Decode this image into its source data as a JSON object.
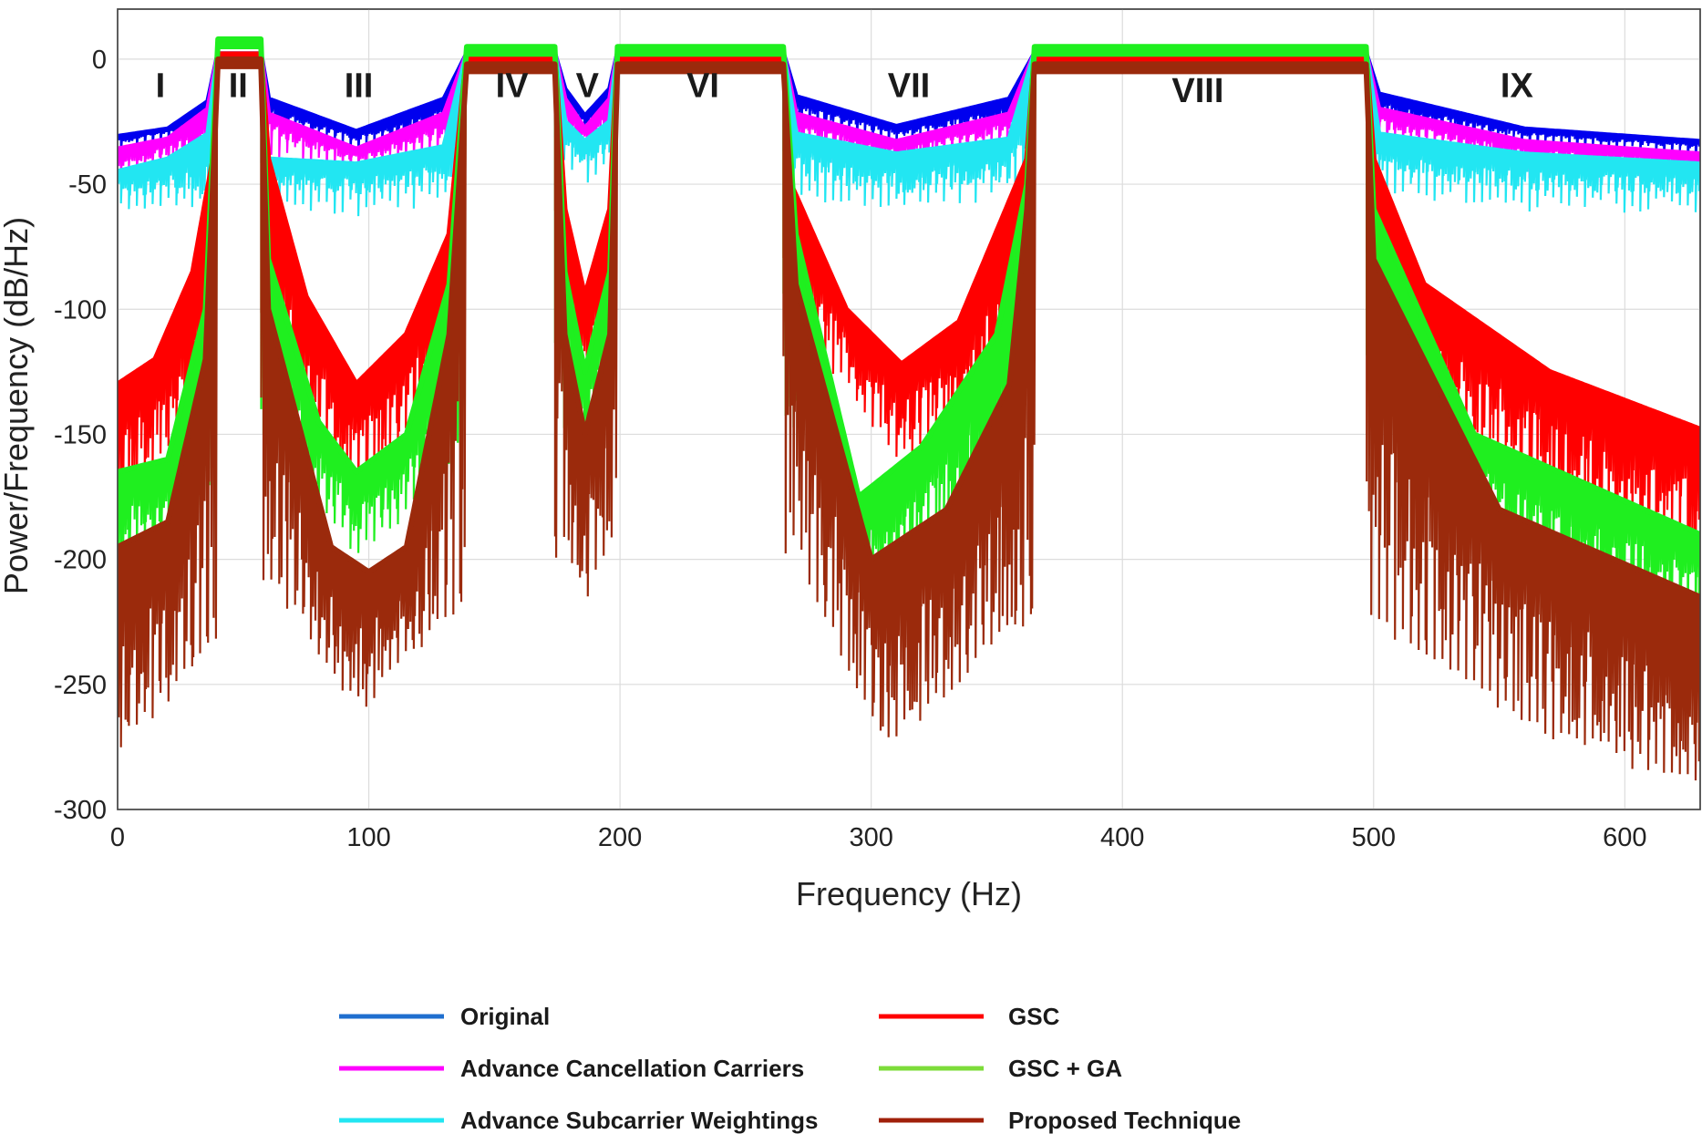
{
  "chart_data": {
    "type": "line",
    "xlabel": "Frequency (Hz)",
    "ylabel": "Power/Frequency (dB/Hz)",
    "xlim": [
      0,
      630
    ],
    "ylim": [
      -300,
      20
    ],
    "xticks": [
      0,
      100,
      200,
      300,
      400,
      500,
      600
    ],
    "yticks": [
      0,
      -50,
      -100,
      -150,
      -200,
      -250,
      -300
    ],
    "grid": true,
    "legend_position": "bottom",
    "region_labels": [
      {
        "text": "I",
        "x": 17,
        "y": -10
      },
      {
        "text": "II",
        "x": 48,
        "y": -10
      },
      {
        "text": "III",
        "x": 96,
        "y": -10
      },
      {
        "text": "IV",
        "x": 157,
        "y": -10
      },
      {
        "text": "V",
        "x": 187,
        "y": -10
      },
      {
        "text": "VI",
        "x": 233,
        "y": -10
      },
      {
        "text": "VII",
        "x": 315,
        "y": -10
      },
      {
        "text": "VIII",
        "x": 430,
        "y": -12
      },
      {
        "text": "IX",
        "x": 557,
        "y": -10
      }
    ],
    "passbands": [
      [
        40,
        57
      ],
      [
        139,
        174
      ],
      [
        199,
        265
      ],
      [
        365,
        497
      ]
    ],
    "series": [
      {
        "name": "Original",
        "color": "#0000ee",
        "envelope": [
          [
            0,
            -31
          ],
          [
            20,
            -28
          ],
          [
            36,
            -17
          ],
          [
            40,
            2
          ],
          [
            57,
            2
          ],
          [
            60,
            -16
          ],
          [
            95,
            -29
          ],
          [
            130,
            -16
          ],
          [
            139,
            2
          ],
          [
            174,
            2
          ],
          [
            178,
            -12
          ],
          [
            186,
            -23
          ],
          [
            196,
            -12
          ],
          [
            199,
            2
          ],
          [
            265,
            2
          ],
          [
            270,
            -15
          ],
          [
            310,
            -27
          ],
          [
            355,
            -16
          ],
          [
            365,
            2
          ],
          [
            497,
            2
          ],
          [
            502,
            -14
          ],
          [
            560,
            -28
          ],
          [
            630,
            -33
          ]
        ],
        "floor": [
          [
            0,
            -34
          ],
          [
            36,
            -26
          ],
          [
            60,
            -24
          ],
          [
            95,
            -33
          ],
          [
            130,
            -25
          ],
          [
            178,
            -20
          ],
          [
            186,
            -27
          ],
          [
            196,
            -20
          ],
          [
            270,
            -22
          ],
          [
            310,
            -31
          ],
          [
            355,
            -24
          ],
          [
            502,
            -22
          ],
          [
            560,
            -31
          ],
          [
            630,
            -36
          ]
        ]
      },
      {
        "name": "Advance Cancellation Carriers",
        "color": "#ff00ff",
        "envelope": [
          [
            0,
            -36
          ],
          [
            20,
            -32
          ],
          [
            36,
            -20
          ],
          [
            40,
            2
          ],
          [
            57,
            2
          ],
          [
            60,
            -22
          ],
          [
            95,
            -36
          ],
          [
            130,
            -22
          ],
          [
            139,
            2
          ],
          [
            174,
            2
          ],
          [
            178,
            -16
          ],
          [
            186,
            -28
          ],
          [
            196,
            -16
          ],
          [
            199,
            2
          ],
          [
            265,
            2
          ],
          [
            270,
            -22
          ],
          [
            310,
            -33
          ],
          [
            355,
            -22
          ],
          [
            365,
            2
          ],
          [
            497,
            2
          ],
          [
            502,
            -20
          ],
          [
            560,
            -33
          ],
          [
            630,
            -38
          ]
        ],
        "floor": [
          [
            0,
            -44
          ],
          [
            36,
            -34
          ],
          [
            60,
            -30
          ],
          [
            95,
            -42
          ],
          [
            130,
            -32
          ],
          [
            178,
            -28
          ],
          [
            186,
            -34
          ],
          [
            196,
            -28
          ],
          [
            270,
            -30
          ],
          [
            310,
            -40
          ],
          [
            355,
            -30
          ],
          [
            502,
            -28
          ],
          [
            560,
            -40
          ],
          [
            630,
            -44
          ]
        ]
      },
      {
        "name": "Advance Subcarrier Weightings",
        "color": "#22e6f2",
        "envelope": [
          [
            0,
            -45
          ],
          [
            20,
            -40
          ],
          [
            36,
            -30
          ],
          [
            40,
            2
          ],
          [
            57,
            2
          ],
          [
            60,
            -40
          ],
          [
            95,
            -42
          ],
          [
            130,
            -35
          ],
          [
            139,
            2
          ],
          [
            174,
            2
          ],
          [
            178,
            -25
          ],
          [
            186,
            -33
          ],
          [
            196,
            -25
          ],
          [
            199,
            2
          ],
          [
            265,
            2
          ],
          [
            270,
            -30
          ],
          [
            310,
            -38
          ],
          [
            355,
            -32
          ],
          [
            365,
            2
          ],
          [
            497,
            2
          ],
          [
            502,
            -30
          ],
          [
            560,
            -38
          ],
          [
            630,
            -42
          ]
        ],
        "floor": [
          [
            0,
            -55
          ],
          [
            36,
            -55
          ],
          [
            60,
            -52
          ],
          [
            95,
            -55
          ],
          [
            130,
            -50
          ],
          [
            178,
            -38
          ],
          [
            186,
            -42
          ],
          [
            196,
            -38
          ],
          [
            270,
            -48
          ],
          [
            310,
            -54
          ],
          [
            355,
            -48
          ],
          [
            502,
            -46
          ],
          [
            560,
            -53
          ],
          [
            630,
            -54
          ]
        ]
      },
      {
        "name": "GSC",
        "color": "#ff0000",
        "envelope": [
          [
            0,
            -130
          ],
          [
            15,
            -120
          ],
          [
            30,
            -85
          ],
          [
            38,
            -40
          ],
          [
            40,
            2
          ],
          [
            57,
            2
          ],
          [
            60,
            -40
          ],
          [
            75,
            -95
          ],
          [
            95,
            -130
          ],
          [
            115,
            -110
          ],
          [
            132,
            -70
          ],
          [
            139,
            2
          ],
          [
            174,
            2
          ],
          [
            178,
            -60
          ],
          [
            186,
            -95
          ],
          [
            196,
            -60
          ],
          [
            199,
            2
          ],
          [
            265,
            2
          ],
          [
            268,
            -50
          ],
          [
            290,
            -100
          ],
          [
            312,
            -122
          ],
          [
            335,
            -105
          ],
          [
            362,
            -40
          ],
          [
            365,
            2
          ],
          [
            497,
            2
          ],
          [
            500,
            -40
          ],
          [
            520,
            -90
          ],
          [
            570,
            -125
          ],
          [
            630,
            -148
          ]
        ],
        "floor": [
          [
            0,
            -175
          ],
          [
            30,
            -140
          ],
          [
            60,
            -120
          ],
          [
            95,
            -170
          ],
          [
            130,
            -130
          ],
          [
            178,
            -110
          ],
          [
            186,
            -125
          ],
          [
            196,
            -110
          ],
          [
            270,
            -100
          ],
          [
            312,
            -155
          ],
          [
            360,
            -120
          ],
          [
            500,
            -120
          ],
          [
            570,
            -170
          ],
          [
            630,
            -195
          ]
        ]
      },
      {
        "name": "GSC + GA",
        "color": "#1fef1f",
        "envelope": [
          [
            0,
            -165
          ],
          [
            20,
            -160
          ],
          [
            35,
            -100
          ],
          [
            40,
            8
          ],
          [
            57,
            8
          ],
          [
            60,
            -80
          ],
          [
            80,
            -145
          ],
          [
            95,
            -165
          ],
          [
            115,
            -150
          ],
          [
            132,
            -90
          ],
          [
            139,
            5
          ],
          [
            174,
            5
          ],
          [
            178,
            -85
          ],
          [
            186,
            -125
          ],
          [
            196,
            -85
          ],
          [
            199,
            5
          ],
          [
            265,
            5
          ],
          [
            270,
            -70
          ],
          [
            295,
            -175
          ],
          [
            320,
            -155
          ],
          [
            350,
            -110
          ],
          [
            362,
            -50
          ],
          [
            365,
            5
          ],
          [
            497,
            5
          ],
          [
            500,
            -60
          ],
          [
            540,
            -150
          ],
          [
            630,
            -190
          ]
        ],
        "floor": [
          [
            0,
            -200
          ],
          [
            30,
            -180
          ],
          [
            60,
            -140
          ],
          [
            95,
            -195
          ],
          [
            130,
            -165
          ],
          [
            178,
            -140
          ],
          [
            186,
            -150
          ],
          [
            196,
            -140
          ],
          [
            270,
            -140
          ],
          [
            300,
            -205
          ],
          [
            360,
            -165
          ],
          [
            500,
            -140
          ],
          [
            570,
            -200
          ],
          [
            630,
            -220
          ]
        ]
      },
      {
        "name": "Proposed Technique",
        "color": "#9b2a0c",
        "envelope": [
          [
            0,
            -195
          ],
          [
            20,
            -185
          ],
          [
            35,
            -120
          ],
          [
            40,
            0
          ],
          [
            57,
            0
          ],
          [
            60,
            -100
          ],
          [
            85,
            -195
          ],
          [
            100,
            -205
          ],
          [
            115,
            -195
          ],
          [
            132,
            -110
          ],
          [
            139,
            -2
          ],
          [
            174,
            -2
          ],
          [
            178,
            -110
          ],
          [
            186,
            -150
          ],
          [
            196,
            -110
          ],
          [
            199,
            -2
          ],
          [
            265,
            -2
          ],
          [
            270,
            -90
          ],
          [
            300,
            -200
          ],
          [
            330,
            -180
          ],
          [
            355,
            -130
          ],
          [
            362,
            -60
          ],
          [
            365,
            -2
          ],
          [
            497,
            -2
          ],
          [
            500,
            -80
          ],
          [
            550,
            -180
          ],
          [
            630,
            -215
          ]
        ],
        "floor": [
          [
            0,
            -270
          ],
          [
            30,
            -240
          ],
          [
            60,
            -200
          ],
          [
            95,
            -255
          ],
          [
            130,
            -220
          ],
          [
            178,
            -190
          ],
          [
            186,
            -210
          ],
          [
            196,
            -190
          ],
          [
            270,
            -190
          ],
          [
            305,
            -270
          ],
          [
            360,
            -220
          ],
          [
            500,
            -220
          ],
          [
            570,
            -265
          ],
          [
            630,
            -285
          ]
        ]
      }
    ]
  },
  "legend": {
    "left_column": [
      "Original",
      "Advance Cancellation Carriers",
      "Advance Subcarrier Weightings"
    ],
    "right_column": [
      "GSC",
      "GSC + GA",
      "Proposed Technique"
    ]
  },
  "colors": {
    "Original": "#1f6fcf",
    "Advance Cancellation Carriers": "#ff00ff",
    "Advance Subcarrier Weightings": "#22e6f2",
    "GSC": "#ff0000",
    "GSC + GA": "#7ddc3a",
    "Proposed Technique": "#a0200a"
  }
}
